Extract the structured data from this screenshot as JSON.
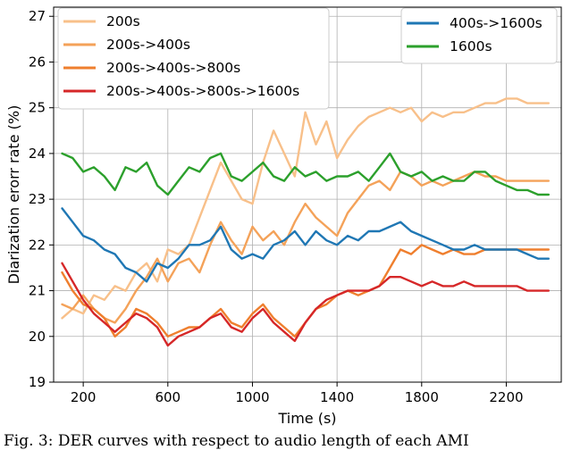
{
  "chart_data": {
    "type": "line",
    "title": "",
    "xlabel": "Time (s)",
    "ylabel": "Diarization erorr rate (%)",
    "xlim": [
      60,
      2460
    ],
    "ylim": [
      19,
      27.2
    ],
    "xticks": [
      200,
      600,
      1000,
      1400,
      1800,
      2200
    ],
    "yticks": [
      19,
      20,
      21,
      22,
      23,
      24,
      25,
      26,
      27
    ],
    "grid": true,
    "legend_left": [
      "200s",
      "200s->400s",
      "200s->400s->800s",
      "200s->400s->800s->1600s"
    ],
    "legend_right": [
      "400s->1600s",
      "1600s"
    ],
    "series": [
      {
        "name": "200s",
        "color": "#f8c08a",
        "x": [
          100,
          150,
          200,
          250,
          300,
          350,
          400,
          450,
          500,
          550,
          600,
          650,
          700,
          750,
          800,
          850,
          900,
          950,
          1000,
          1050,
          1100,
          1150,
          1200,
          1250,
          1300,
          1350,
          1400,
          1450,
          1500,
          1550,
          1600,
          1650,
          1700,
          1750,
          1800,
          1850,
          1900,
          1950,
          2000,
          2050,
          2100,
          2150,
          2200,
          2250,
          2300,
          2350,
          2400
        ],
        "y": [
          20.4,
          20.6,
          20.5,
          20.9,
          20.8,
          21.1,
          21.0,
          21.4,
          21.6,
          21.2,
          21.9,
          21.8,
          22.0,
          22.6,
          23.2,
          23.8,
          23.4,
          23.0,
          22.9,
          23.8,
          24.5,
          24.0,
          23.5,
          24.9,
          24.2,
          24.7,
          23.9,
          24.3,
          24.6,
          24.8,
          24.9,
          25.0,
          24.9,
          25.0,
          24.7,
          24.9,
          24.8,
          24.9,
          24.9,
          25.0,
          25.1,
          25.1,
          25.2,
          25.2,
          25.1,
          25.1,
          25.1
        ]
      },
      {
        "name": "200s->400s",
        "color": "#f4a259",
        "x": [
          100,
          150,
          200,
          250,
          300,
          350,
          400,
          450,
          500,
          550,
          600,
          650,
          700,
          750,
          800,
          850,
          900,
          950,
          1000,
          1050,
          1100,
          1150,
          1200,
          1250,
          1300,
          1350,
          1400,
          1450,
          1500,
          1550,
          1600,
          1650,
          1700,
          1750,
          1800,
          1850,
          1900,
          1950,
          2000,
          2050,
          2100,
          2150,
          2200,
          2250,
          2300,
          2350,
          2400
        ],
        "y": [
          20.7,
          20.6,
          20.9,
          20.6,
          20.4,
          20.3,
          20.6,
          21.0,
          21.3,
          21.7,
          21.2,
          21.6,
          21.7,
          21.4,
          22.0,
          22.5,
          22.1,
          21.8,
          22.4,
          22.1,
          22.3,
          22.0,
          22.5,
          22.9,
          22.6,
          22.4,
          22.2,
          22.7,
          23.0,
          23.3,
          23.4,
          23.2,
          23.6,
          23.5,
          23.3,
          23.4,
          23.3,
          23.4,
          23.5,
          23.6,
          23.5,
          23.5,
          23.4,
          23.4,
          23.4,
          23.4,
          23.4
        ]
      },
      {
        "name": "200s->400s->800s",
        "color": "#ef7f2e",
        "x": [
          100,
          150,
          200,
          250,
          300,
          350,
          400,
          450,
          500,
          550,
          600,
          650,
          700,
          750,
          800,
          850,
          900,
          950,
          1000,
          1050,
          1100,
          1150,
          1200,
          1250,
          1300,
          1350,
          1400,
          1450,
          1500,
          1550,
          1600,
          1650,
          1700,
          1750,
          1800,
          1850,
          1900,
          1950,
          2000,
          2050,
          2100,
          2150,
          2200,
          2250,
          2300,
          2350,
          2400
        ],
        "y": [
          21.4,
          21.0,
          20.7,
          20.6,
          20.4,
          20.0,
          20.2,
          20.6,
          20.5,
          20.3,
          20.0,
          20.1,
          20.2,
          20.2,
          20.4,
          20.6,
          20.3,
          20.2,
          20.5,
          20.7,
          20.4,
          20.2,
          20.0,
          20.3,
          20.6,
          20.7,
          20.9,
          21.0,
          20.9,
          21.0,
          21.1,
          21.5,
          21.9,
          21.8,
          22.0,
          21.9,
          21.8,
          21.9,
          21.8,
          21.8,
          21.9,
          21.9,
          21.9,
          21.9,
          21.9,
          21.9,
          21.9
        ]
      },
      {
        "name": "200s->400s->800s->1600s",
        "color": "#d62728",
        "x": [
          100,
          150,
          200,
          250,
          300,
          350,
          400,
          450,
          500,
          550,
          600,
          650,
          700,
          750,
          800,
          850,
          900,
          950,
          1000,
          1050,
          1100,
          1150,
          1200,
          1250,
          1300,
          1350,
          1400,
          1450,
          1500,
          1550,
          1600,
          1650,
          1700,
          1750,
          1800,
          1850,
          1900,
          1950,
          2000,
          2050,
          2100,
          2150,
          2200,
          2250,
          2300,
          2350,
          2400
        ],
        "y": [
          21.6,
          21.2,
          20.8,
          20.5,
          20.3,
          20.1,
          20.3,
          20.5,
          20.4,
          20.2,
          19.8,
          20.0,
          20.1,
          20.2,
          20.4,
          20.5,
          20.2,
          20.1,
          20.4,
          20.6,
          20.3,
          20.1,
          19.9,
          20.3,
          20.6,
          20.8,
          20.9,
          21.0,
          21.0,
          21.0,
          21.1,
          21.3,
          21.3,
          21.2,
          21.1,
          21.2,
          21.1,
          21.1,
          21.2,
          21.1,
          21.1,
          21.1,
          21.1,
          21.1,
          21.0,
          21.0,
          21.0
        ]
      },
      {
        "name": "400s->1600s",
        "color": "#1f77b4",
        "x": [
          100,
          150,
          200,
          250,
          300,
          350,
          400,
          450,
          500,
          550,
          600,
          650,
          700,
          750,
          800,
          850,
          900,
          950,
          1000,
          1050,
          1100,
          1150,
          1200,
          1250,
          1300,
          1350,
          1400,
          1450,
          1500,
          1550,
          1600,
          1650,
          1700,
          1750,
          1800,
          1850,
          1900,
          1950,
          2000,
          2050,
          2100,
          2150,
          2200,
          2250,
          2300,
          2350,
          2400
        ],
        "y": [
          22.8,
          22.5,
          22.2,
          22.1,
          21.9,
          21.8,
          21.5,
          21.4,
          21.2,
          21.6,
          21.5,
          21.7,
          22.0,
          22.0,
          22.1,
          22.4,
          21.9,
          21.7,
          21.8,
          21.7,
          22.0,
          22.1,
          22.3,
          22.0,
          22.3,
          22.1,
          22.0,
          22.2,
          22.1,
          22.3,
          22.3,
          22.4,
          22.5,
          22.3,
          22.2,
          22.1,
          22.0,
          21.9,
          21.9,
          22.0,
          21.9,
          21.9,
          21.9,
          21.9,
          21.8,
          21.7,
          21.7
        ]
      },
      {
        "name": "1600s",
        "color": "#2ca02c",
        "x": [
          100,
          150,
          200,
          250,
          300,
          350,
          400,
          450,
          500,
          550,
          600,
          650,
          700,
          750,
          800,
          850,
          900,
          950,
          1000,
          1050,
          1100,
          1150,
          1200,
          1250,
          1300,
          1350,
          1400,
          1450,
          1500,
          1550,
          1600,
          1650,
          1700,
          1750,
          1800,
          1850,
          1900,
          1950,
          2000,
          2050,
          2100,
          2150,
          2200,
          2250,
          2300,
          2350,
          2400
        ],
        "y": [
          24.0,
          23.9,
          23.6,
          23.7,
          23.5,
          23.2,
          23.7,
          23.6,
          23.8,
          23.3,
          23.1,
          23.4,
          23.7,
          23.6,
          23.9,
          24.0,
          23.5,
          23.4,
          23.6,
          23.8,
          23.5,
          23.4,
          23.7,
          23.5,
          23.6,
          23.4,
          23.5,
          23.5,
          23.6,
          23.4,
          23.7,
          24.0,
          23.6,
          23.5,
          23.6,
          23.4,
          23.5,
          23.4,
          23.4,
          23.6,
          23.6,
          23.4,
          23.3,
          23.2,
          23.2,
          23.1,
          23.1
        ]
      }
    ]
  },
  "caption_text": "Fig. 3: DER curves with respect to audio length of each AMI"
}
